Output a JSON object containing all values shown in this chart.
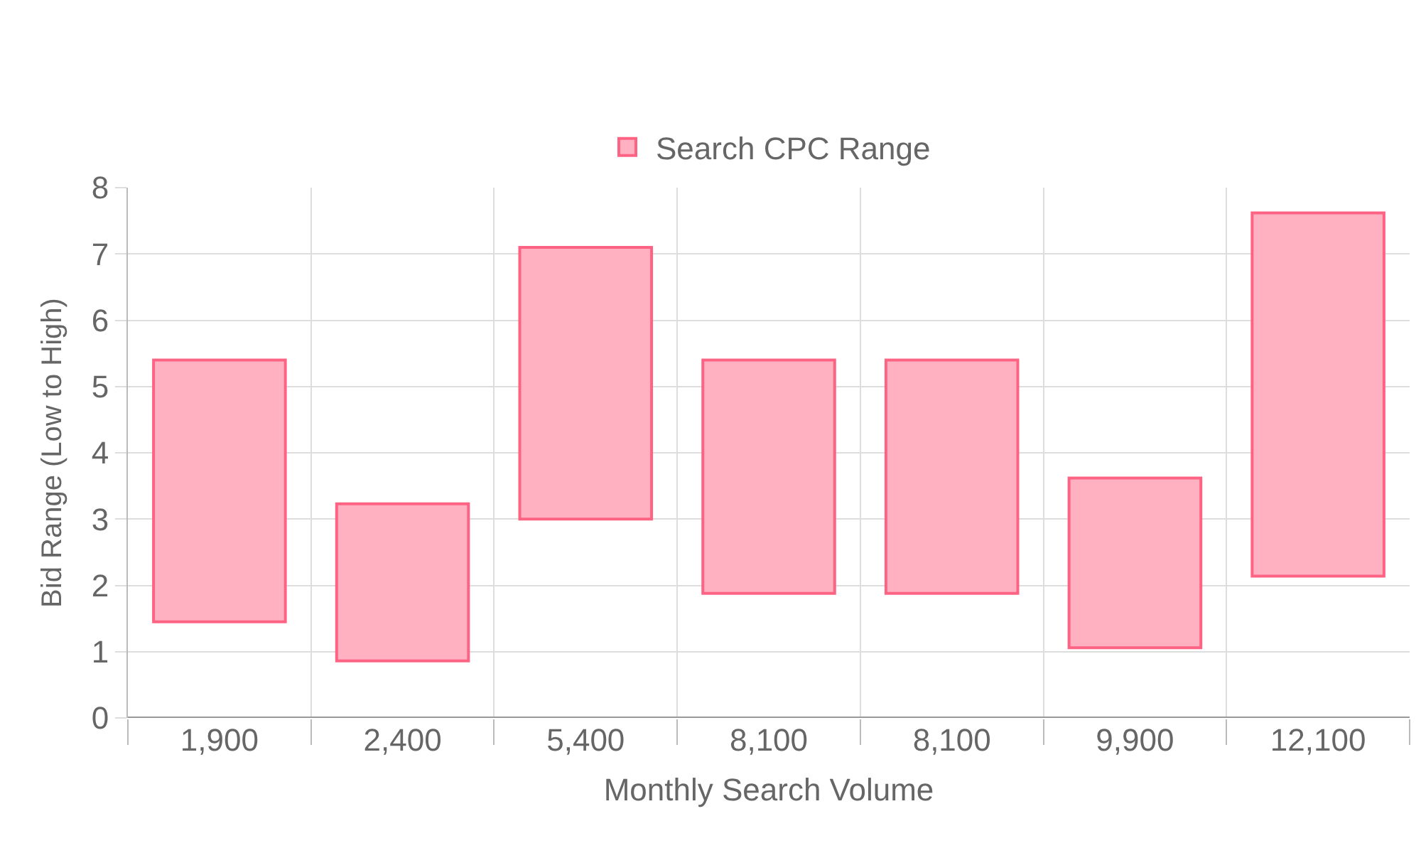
{
  "chart_data": {
    "type": "bar",
    "xlabel": "Monthly Search Volume",
    "ylabel": "Bid Range (Low to High)",
    "categories": [
      "1,900",
      "2,400",
      "5,400",
      "8,100",
      "8,100",
      "9,900",
      "12,100"
    ],
    "series": [
      {
        "name": "Search CPC Range",
        "color": "#ffb1c1",
        "values": [
          3.95,
          2.37,
          4.1,
          3.52,
          3.52,
          2.56,
          5.48
        ],
        "base": [
          1.45,
          0.86,
          3.0,
          1.88,
          1.88,
          1.06,
          2.14
        ]
      }
    ],
    "ylim": [
      0,
      8
    ],
    "yticks": [
      0,
      1,
      2,
      3,
      4,
      5,
      6,
      7,
      8
    ],
    "grid": true,
    "legend": "top"
  }
}
